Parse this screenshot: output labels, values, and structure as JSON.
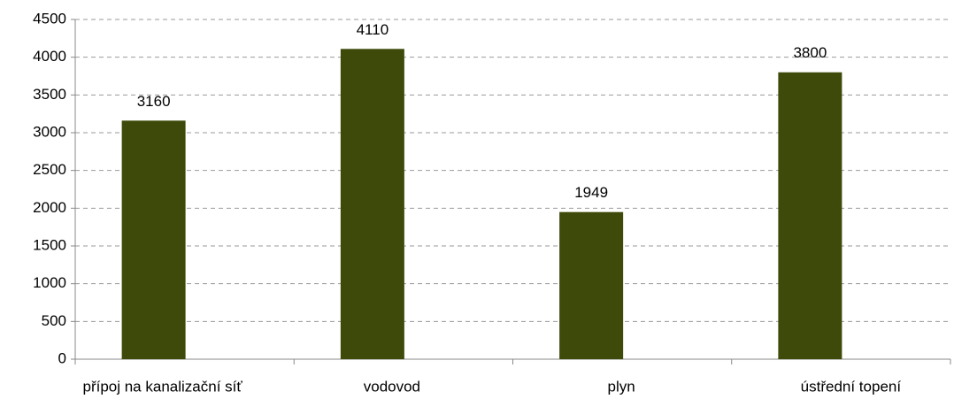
{
  "chart_data": {
    "type": "bar",
    "categories": [
      "přípoj na kanalizační síť",
      "vodovod",
      "plyn",
      "ústřední topení"
    ],
    "values": [
      3160,
      4110,
      1949,
      3800
    ],
    "color": "#3d4a0a",
    "ylim": [
      0,
      4500
    ],
    "yticks": [
      0,
      500,
      1000,
      1500,
      2000,
      2500,
      3000,
      3500,
      4000,
      4500
    ],
    "grid": true
  }
}
